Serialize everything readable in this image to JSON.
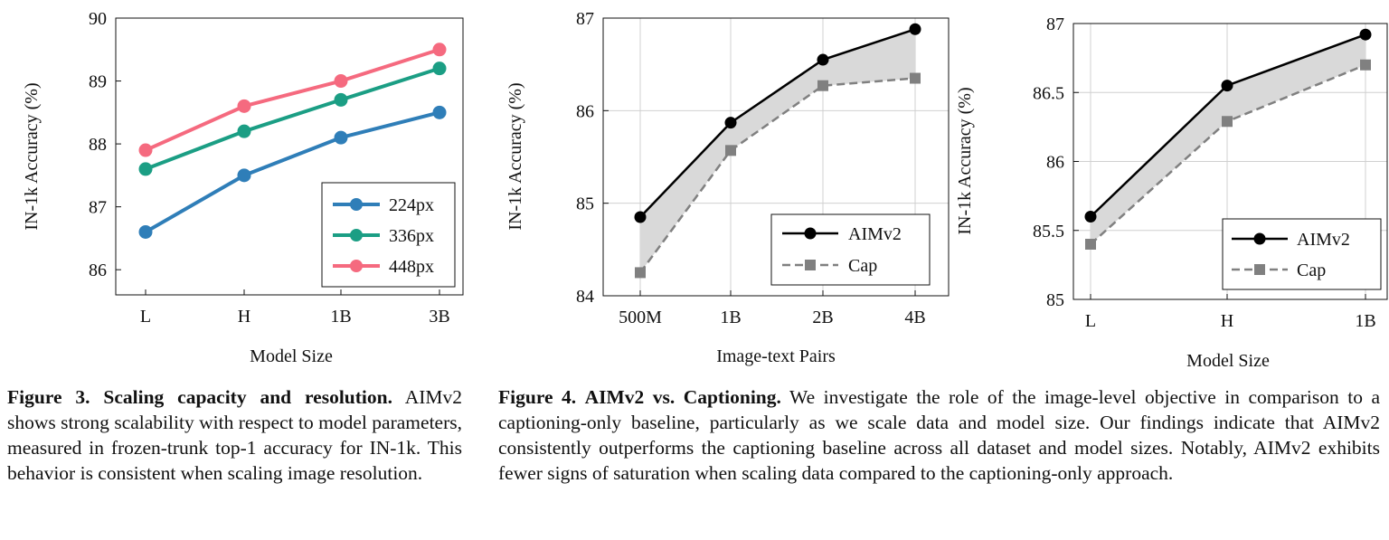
{
  "colors": {
    "c224": "#2f7eb8",
    "c336": "#1b9e84",
    "c448": "#f56a7f",
    "aim": "#000000",
    "cap": "#808080",
    "fill": "#d9d9d9",
    "grid": "#d0d0d0"
  },
  "chart_data": [
    {
      "type": "line",
      "title": "",
      "xlabel": "Model Size",
      "ylabel": "IN-1k Accuracy (%)",
      "categories": [
        "L",
        "H",
        "1B",
        "3B"
      ],
      "ylim": [
        85.6,
        90
      ],
      "yticks": [
        "86",
        "87",
        "88",
        "89",
        "90"
      ],
      "legend": "bottom-right",
      "series": [
        {
          "name": "224px",
          "values": [
            86.6,
            87.5,
            88.1,
            88.5
          ],
          "color": "#2f7eb8"
        },
        {
          "name": "336px",
          "values": [
            87.6,
            88.2,
            88.7,
            89.2
          ],
          "color": "#1b9e84"
        },
        {
          "name": "448px",
          "values": [
            87.9,
            88.6,
            89.0,
            89.5
          ],
          "color": "#f56a7f"
        }
      ]
    },
    {
      "type": "line",
      "title": "",
      "xlabel": "Image-text Pairs",
      "ylabel": "IN-1k Accuracy (%)",
      "categories": [
        "500M",
        "1B",
        "2B",
        "4B"
      ],
      "ylim": [
        84,
        87
      ],
      "yticks": [
        "84",
        "85",
        "86",
        "87"
      ],
      "legend": "bottom-right",
      "series": [
        {
          "name": "AIMv2",
          "values": [
            84.85,
            85.87,
            86.55,
            86.88
          ]
        },
        {
          "name": "Cap",
          "values": [
            84.25,
            85.57,
            86.27,
            86.35
          ]
        }
      ]
    },
    {
      "type": "line",
      "title": "",
      "xlabel": "Model Size",
      "ylabel": "IN-1k Accuracy (%)",
      "categories": [
        "L",
        "H",
        "1B"
      ],
      "ylim": [
        85,
        87
      ],
      "yticks": [
        "85",
        "85.5",
        "86",
        "86.5",
        "87"
      ],
      "legend": "bottom-right",
      "series": [
        {
          "name": "AIMv2",
          "values": [
            85.6,
            86.55,
            86.92
          ]
        },
        {
          "name": "Cap",
          "values": [
            85.4,
            86.29,
            86.7
          ]
        }
      ]
    }
  ],
  "captions": {
    "fig3": {
      "label": "Figure 3.",
      "title": "Scaling capacity and resolution.",
      "text": "AIMv2 shows strong scalability with respect to model parameters, measured in frozen-trunk top-1 accuracy for IN-1k. This behavior is consistent when scaling image resolution."
    },
    "fig4": {
      "label": "Figure 4.",
      "title": "AIMv2 vs. Captioning.",
      "text": "We investigate the role of the image-level objective in comparison to a captioning-only baseline, particularly as we scale data and model size. Our findings indicate that AIMv2 consistently outperforms the captioning baseline across all dataset and model sizes. Notably, AIMv2 exhibits fewer signs of saturation when scaling data compared to the captioning-only approach."
    }
  }
}
